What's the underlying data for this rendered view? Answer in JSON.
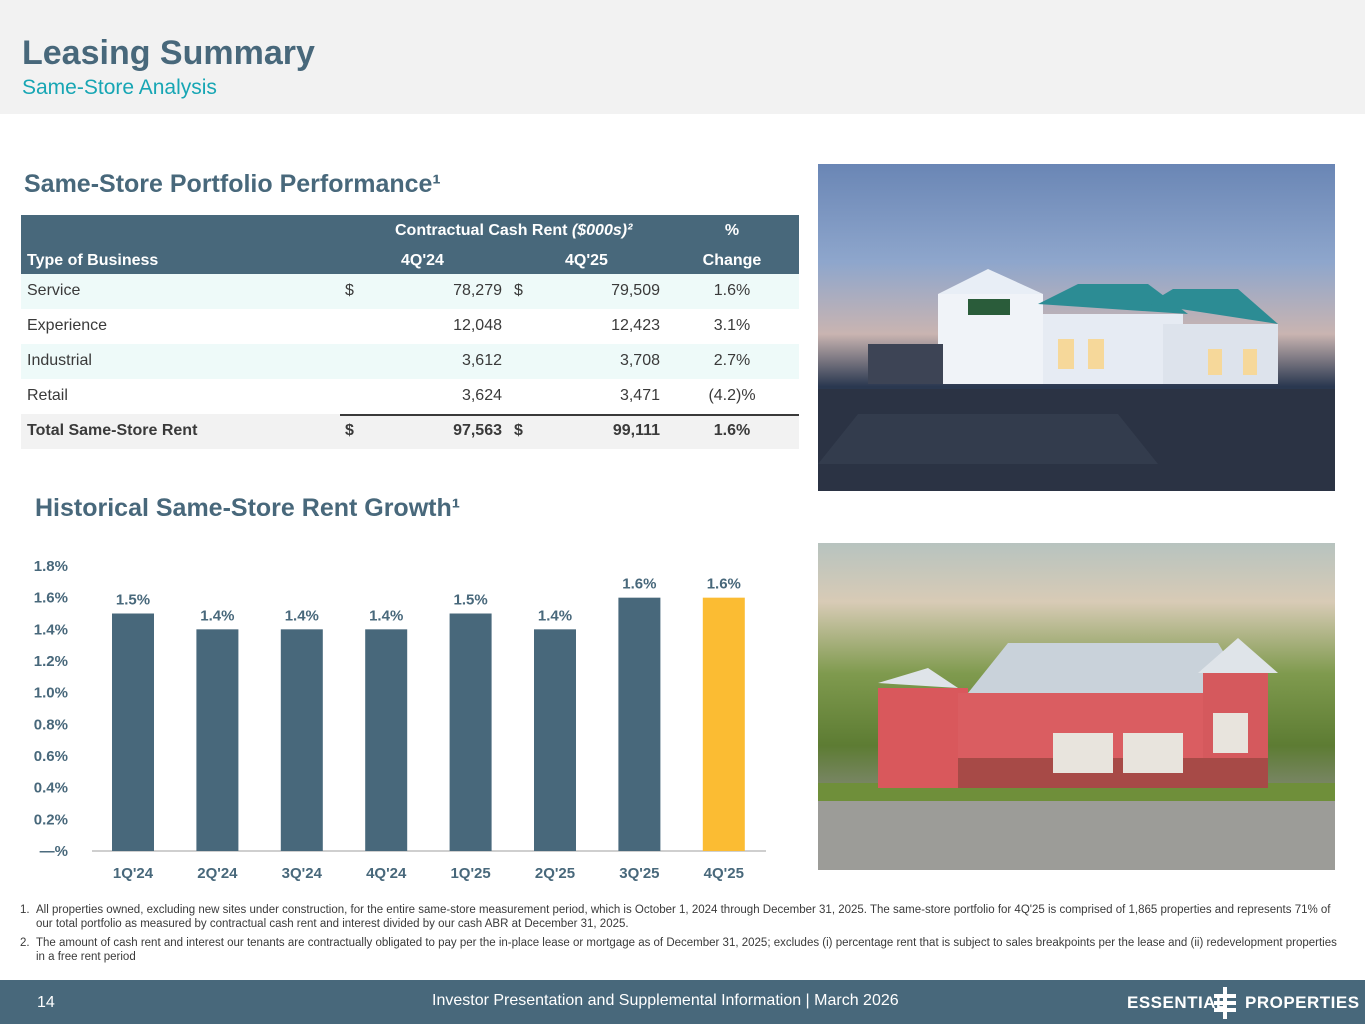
{
  "header": {
    "title": "Leasing Summary",
    "subtitle": "Same-Store Analysis"
  },
  "table_section": {
    "title": "Same-Store Portfolio Performance¹",
    "header": {
      "group_label": "Contractual Cash Rent",
      "group_unit": "($000s)²",
      "pct_label": "%",
      "col_type": "Type of Business",
      "col_4q24": "4Q'24",
      "col_4q25": "4Q'25",
      "col_change": "Change"
    },
    "rows": [
      {
        "type": "Service",
        "dollar1": "$",
        "v24": "78,279",
        "dollar2": "$",
        "v25": "79,509",
        "change": "1.6%"
      },
      {
        "type": "Experience",
        "dollar1": "",
        "v24": "12,048",
        "dollar2": "",
        "v25": "12,423",
        "change": "3.1%"
      },
      {
        "type": "Industrial",
        "dollar1": "",
        "v24": "3,612",
        "dollar2": "",
        "v25": "3,708",
        "change": "2.7%"
      },
      {
        "type": "Retail",
        "dollar1": "",
        "v24": "3,624",
        "dollar2": "",
        "v25": "3,471",
        "change": "(4.2)%"
      }
    ],
    "total": {
      "type": "Total Same-Store Rent",
      "dollar1": "$",
      "v24": "97,563",
      "dollar2": "$",
      "v25": "99,111",
      "change": "1.6%"
    }
  },
  "chart_section": {
    "title": "Historical Same-Store Rent Growth¹"
  },
  "chart_data": {
    "type": "bar",
    "categories": [
      "1Q'24",
      "2Q'24",
      "3Q'24",
      "4Q'24",
      "1Q'25",
      "2Q'25",
      "3Q'25",
      "4Q'25"
    ],
    "values": [
      1.5,
      1.4,
      1.4,
      1.4,
      1.5,
      1.4,
      1.6,
      1.6
    ],
    "data_labels": [
      "1.5%",
      "1.4%",
      "1.4%",
      "1.4%",
      "1.5%",
      "1.4%",
      "1.6%",
      "1.6%"
    ],
    "yticks": [
      "—%",
      "0.2%",
      "0.4%",
      "0.6%",
      "0.8%",
      "1.0%",
      "1.2%",
      "1.4%",
      "1.6%",
      "1.8%"
    ],
    "ylim": [
      0,
      1.8
    ],
    "grid": false,
    "bar_color": "#48687b",
    "highlight_color": "#fbbc33",
    "highlight_index": 7,
    "title": "Historical Same-Store Rent Growth¹",
    "xlabel": "",
    "ylabel": ""
  },
  "footnotes": [
    {
      "num": "1.",
      "text": "All properties owned, excluding new sites under construction, for the entire same-store measurement period, which is October 1, 2024 through December 31, 2025. The same-store portfolio for 4Q'25 is comprised of 1,865 properties and represents 71% of our total portfolio as measured by contractual cash rent and interest divided by our cash ABR at December 31, 2025."
    },
    {
      "num": "2.",
      "text": "The amount of cash rent and interest our tenants are contractually obligated to pay per the in-place lease or mortgage as of December 31, 2025; excludes (i) percentage rent that is subject to sales breakpoints per the lease and (ii) redevelopment properties in a free rent period"
    }
  ],
  "footer": {
    "page": "14",
    "text": "Investor Presentation and Supplemental Information |  March 2026",
    "logo_word1": "ESSENTIAL",
    "logo_word2": "PROPERTIES"
  },
  "colors": {
    "primary": "#48687b",
    "accent": "#17a6b4",
    "highlight": "#fbbc33",
    "alt_row": "#eefaf9"
  }
}
